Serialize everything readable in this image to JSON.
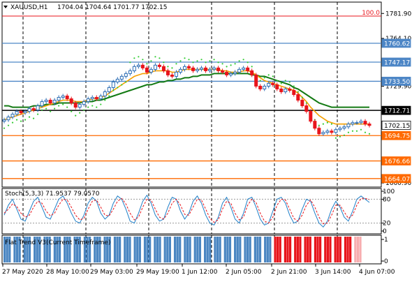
{
  "symbol_header": {
    "symbol": "XAUUSD,H1",
    "ohlc": "1704.04 1704.64 1701.77 1702.15"
  },
  "colors": {
    "background": "#ffffff",
    "axis": "#000000",
    "grid": "#000000",
    "bull_candle": "#2f6fb5",
    "bear_candle": "#e8141b",
    "ma_fast": "#f5a000",
    "ma_slow": "#137a13",
    "psar": "#33cc33",
    "h_line_blue": "#4d86c6",
    "h_line_orange": "#ff6a00",
    "h_line_black": "#000000",
    "level_100": "#e8141b",
    "stoch_main": "#1e7fc8",
    "stoch_signal": "#e8141b",
    "flat_trend_bull": "#4a86c2",
    "flat_trend_bear": "#e8141b"
  },
  "chart_data": [
    {
      "type": "candlestick",
      "title": "XAUUSD,H1",
      "y_axis_ticks": [
        "1781.90",
        "1764.10",
        "1729.90",
        "1660.90"
      ],
      "ylim": [
        1658,
        1790
      ],
      "last_price": 1702.15,
      "last_price_label": "1702.15",
      "level_100_label": "100.0",
      "horizontal_lines": [
        {
          "value": 1760.62,
          "label": "1760.62",
          "style": "blue"
        },
        {
          "value": 1747.17,
          "label": "1747.17",
          "style": "blue"
        },
        {
          "value": 1733.5,
          "label": "1733.50",
          "style": "blue"
        },
        {
          "value": 1712.71,
          "label": "1712.71",
          "style": "black"
        },
        {
          "value": 1694.75,
          "label": "1694.75",
          "style": "orange"
        },
        {
          "value": 1676.66,
          "label": "1676.66",
          "style": "orange"
        },
        {
          "value": 1664.07,
          "label": "1664.07",
          "style": "orange"
        }
      ],
      "x_axis_labels": [
        "27 May 2020",
        "28 May 10:00",
        "29 May 03:00",
        "29 May 19:00",
        "1 Jun 12:00",
        "2 Jun 05:00",
        "2 Jun 21:00",
        "3 Jun 14:00",
        "4 Jun 07:00"
      ],
      "close_path": [
        1706,
        1708,
        1710,
        1712,
        1711,
        1712,
        1714,
        1713,
        1716,
        1719,
        1720,
        1718,
        1720,
        1722,
        1723,
        1721,
        1718,
        1715,
        1717,
        1719,
        1721,
        1722,
        1721,
        1723,
        1726,
        1729,
        1733,
        1735,
        1737,
        1739,
        1741,
        1744,
        1745,
        1743,
        1740,
        1742,
        1745,
        1744,
        1741,
        1738,
        1737,
        1740,
        1742,
        1744,
        1743,
        1741,
        1742,
        1743,
        1741,
        1742,
        1743,
        1741,
        1740,
        1738,
        1739,
        1740,
        1742,
        1743,
        1741,
        1738,
        1730,
        1728,
        1730,
        1732,
        1731,
        1728,
        1726,
        1728,
        1727,
        1724,
        1720,
        1716,
        1712,
        1705,
        1700,
        1696,
        1697,
        1698,
        1697,
        1699,
        1700,
        1701,
        1703,
        1704,
        1704,
        1705,
        1703,
        1702
      ],
      "ma_fast_path": [
        1706,
        1707,
        1708,
        1709,
        1710,
        1711,
        1712,
        1713,
        1714,
        1715,
        1716,
        1717,
        1718,
        1719,
        1720,
        1720,
        1720,
        1719,
        1719,
        1719,
        1720,
        1721,
        1721,
        1722,
        1723,
        1725,
        1727,
        1729,
        1731,
        1733,
        1735,
        1737,
        1738,
        1739,
        1739,
        1740,
        1741,
        1741,
        1741,
        1741,
        1740,
        1740,
        1741,
        1742,
        1742,
        1742,
        1742,
        1742,
        1742,
        1742,
        1742,
        1742,
        1741,
        1741,
        1740,
        1740,
        1740,
        1741,
        1741,
        1740,
        1738,
        1736,
        1734,
        1733,
        1732,
        1731,
        1730,
        1729,
        1728,
        1727,
        1725,
        1722,
        1719,
        1715,
        1712,
        1709,
        1707,
        1705,
        1704,
        1703,
        1703,
        1703,
        1703,
        1703,
        1703,
        1703,
        1703,
        1703
      ],
      "ma_slow_path": [
        1716,
        1716,
        1715,
        1715,
        1715,
        1715,
        1715,
        1716,
        1716,
        1716,
        1717,
        1717,
        1717,
        1718,
        1718,
        1718,
        1718,
        1718,
        1718,
        1719,
        1719,
        1719,
        1720,
        1720,
        1721,
        1722,
        1723,
        1724,
        1725,
        1726,
        1727,
        1728,
        1729,
        1730,
        1731,
        1731,
        1732,
        1733,
        1733,
        1734,
        1734,
        1735,
        1735,
        1736,
        1736,
        1737,
        1737,
        1738,
        1738,
        1738,
        1739,
        1739,
        1739,
        1739,
        1739,
        1739,
        1739,
        1739,
        1739,
        1738,
        1738,
        1737,
        1737,
        1736,
        1735,
        1734,
        1733,
        1732,
        1731,
        1729,
        1728,
        1726,
        1724,
        1722,
        1720,
        1718,
        1717,
        1716,
        1715,
        1715,
        1715,
        1715,
        1715,
        1715,
        1715,
        1715,
        1715,
        1715
      ]
    },
    {
      "type": "line",
      "title": "Stoch(5,3,3) 71.9537 79.0570",
      "y_axis_ticks": [
        "100",
        "80",
        "20",
        "0"
      ],
      "ylim": [
        0,
        100
      ],
      "levels": [
        80,
        20
      ],
      "series": [
        {
          "name": "main",
          "values": [
            40,
            65,
            80,
            55,
            30,
            25,
            50,
            75,
            85,
            60,
            35,
            30,
            55,
            80,
            88,
            70,
            45,
            25,
            20,
            40,
            70,
            85,
            75,
            45,
            30,
            40,
            70,
            88,
            80,
            55,
            25,
            20,
            45,
            75,
            90,
            70,
            40,
            25,
            30,
            60,
            85,
            80,
            50,
            30,
            45,
            75,
            88,
            70,
            40,
            20,
            15,
            35,
            70,
            85,
            60,
            30,
            20,
            45,
            80,
            85,
            60,
            30,
            15,
            20,
            50,
            80,
            85,
            70,
            40,
            20,
            25,
            55,
            80,
            75,
            45,
            20,
            10,
            25,
            55,
            75,
            60,
            35,
            25,
            50,
            80,
            88,
            80,
            72
          ]
        },
        {
          "name": "signal",
          "values": [
            45,
            55,
            68,
            62,
            45,
            35,
            40,
            60,
            75,
            70,
            50,
            38,
            45,
            65,
            80,
            78,
            60,
            40,
            28,
            32,
            55,
            75,
            78,
            60,
            40,
            38,
            55,
            75,
            82,
            68,
            45,
            28,
            35,
            60,
            80,
            78,
            55,
            35,
            30,
            45,
            70,
            80,
            65,
            42,
            40,
            60,
            80,
            78,
            55,
            32,
            22,
            28,
            55,
            75,
            70,
            45,
            28,
            35,
            65,
            80,
            72,
            45,
            25,
            20,
            35,
            65,
            80,
            78,
            55,
            32,
            25,
            40,
            65,
            78,
            60,
            35,
            18,
            20,
            40,
            65,
            65,
            48,
            32,
            40,
            65,
            82,
            82,
            79
          ]
        }
      ]
    },
    {
      "type": "histogram",
      "title": "Flat Trend V3(Current Timeframe)",
      "y_axis_ticks": [
        "1",
        "0"
      ],
      "ylim": [
        0,
        1
      ],
      "bull_bar_count": 107,
      "bear_bar_count": 33,
      "faint_bar_count": 3
    }
  ]
}
